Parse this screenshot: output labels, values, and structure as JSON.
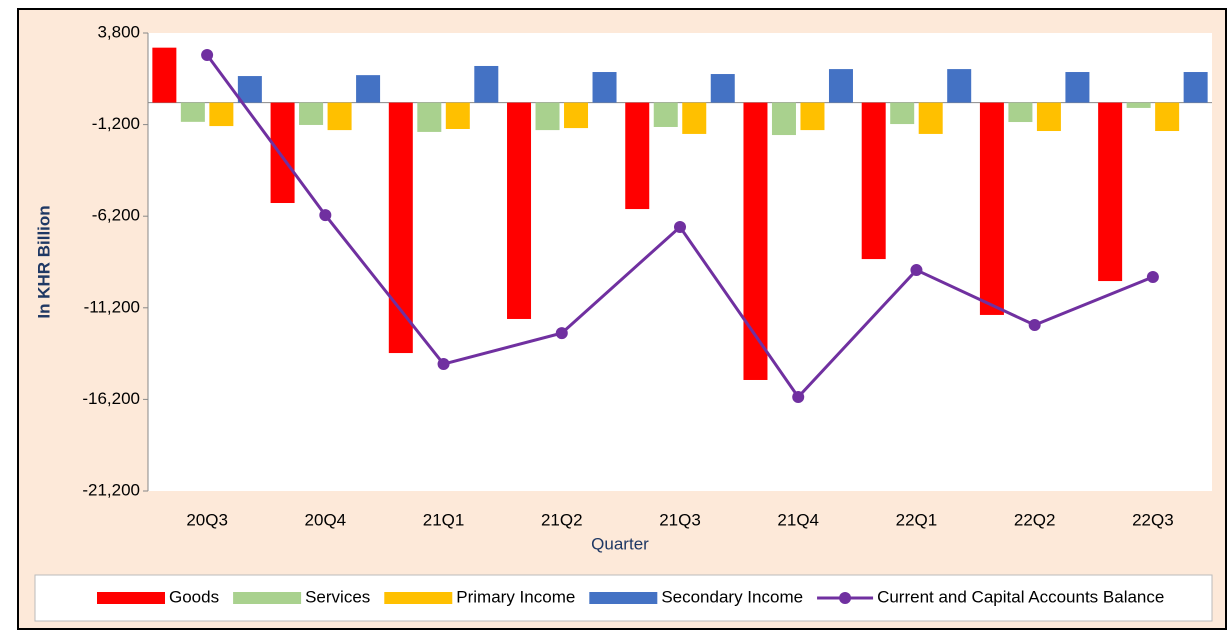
{
  "chart_data": {
    "type": "bar",
    "xlabel": "Quarter",
    "ylabel": "In KHR Billion",
    "categories": [
      "20Q3",
      "20Q4",
      "21Q1",
      "21Q2",
      "21Q3",
      "21Q4",
      "22Q1",
      "22Q2",
      "22Q3"
    ],
    "series": [
      {
        "name": "Goods",
        "color": "#ff0000",
        "values": [
          3000,
          -5480,
          -13670,
          -11810,
          -5810,
          -15140,
          -8540,
          -11590,
          -9740
        ]
      },
      {
        "name": "Services",
        "color": "#a9d18e",
        "values": [
          -1050,
          -1220,
          -1600,
          -1500,
          -1330,
          -1770,
          -1170,
          -1060,
          -290
        ]
      },
      {
        "name": "Primary Income",
        "color": "#ffc000",
        "values": [
          -1280,
          -1500,
          -1440,
          -1390,
          -1710,
          -1500,
          -1710,
          -1550,
          -1550
        ]
      },
      {
        "name": "Secondary Income",
        "color": "#4472c4",
        "values": [
          1450,
          1500,
          2000,
          1670,
          1560,
          1830,
          1830,
          1670,
          1670
        ]
      },
      {
        "name": "Current and Capital Accounts Balance",
        "color": "#7030a0",
        "type": "line",
        "values": [
          2600,
          -6140,
          -14270,
          -12580,
          -6790,
          -16070,
          -9140,
          -12140,
          -9520
        ]
      }
    ],
    "ylim": [
      -21200,
      3800
    ],
    "yticks": [
      {
        "value": 3800,
        "label": "3,800"
      },
      {
        "value": -1200,
        "label": "-1,200"
      },
      {
        "value": -6200,
        "label": "-6,200"
      },
      {
        "value": -11200,
        "label": "-11,200"
      },
      {
        "value": -16200,
        "label": "-16,200"
      },
      {
        "value": -21200,
        "label": "-21,200"
      }
    ],
    "grid": false,
    "legend": "bottom"
  }
}
